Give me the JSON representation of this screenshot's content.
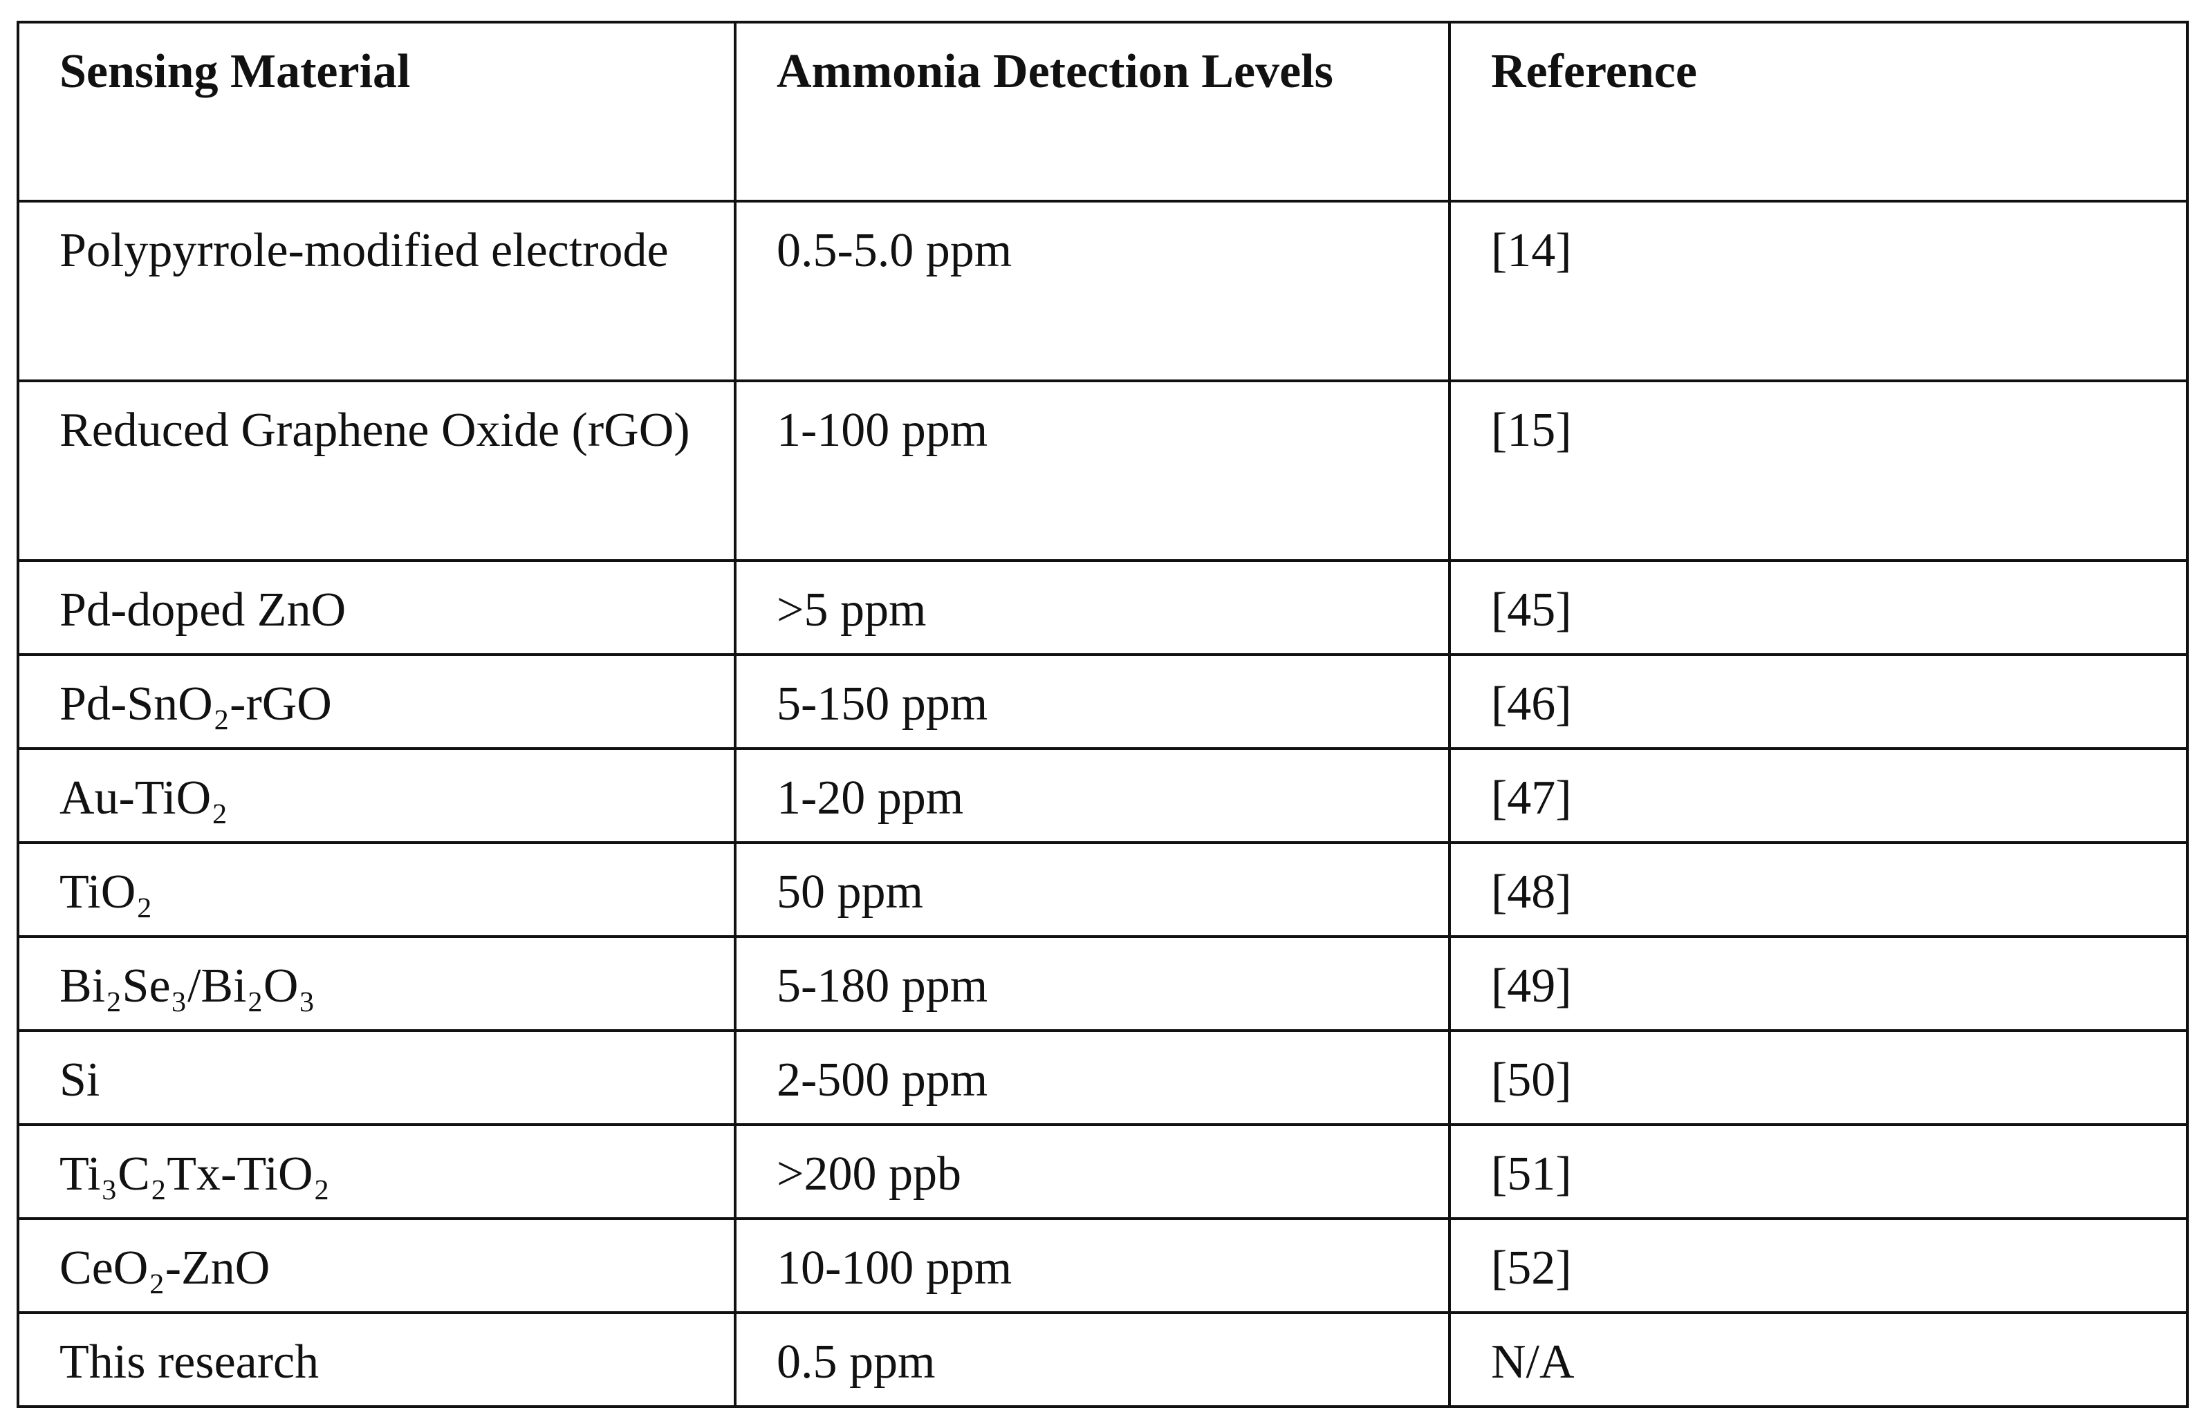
{
  "table": {
    "header": [
      "Sensing Material",
      "Ammonia Detection Levels",
      "Reference"
    ],
    "rows": [
      [
        "Polypyrrole-modified electrode",
        "0.5-5.0 ppm",
        "[14]"
      ],
      [
        "Reduced Graphene Oxide (rGO)",
        "1-100 ppm",
        "[15]"
      ],
      [
        "Pd-doped ZnO",
        ">5 ppm",
        "[45]"
      ],
      [
        "Pd-SnO₂-rGO",
        "5-150 ppm",
        "[46]"
      ],
      [
        "Au-TiO₂",
        "1-20 ppm",
        "[47]"
      ],
      [
        "TiO₂",
        "50 ppm",
        "[48]"
      ],
      [
        "Bi₂Se₃/Bi₂O₃",
        "5-180 ppm",
        "[49]"
      ],
      [
        "Si",
        "2-500 ppm",
        "[50]"
      ],
      [
        "Ti₃C₂Tx-TiO₂",
        ">200 ppb",
        "[51]"
      ],
      [
        "CeO₂-ZnO",
        "10-100 ppm",
        "[52]"
      ],
      [
        "This research",
        "0.5 ppm",
        "N/A"
      ]
    ]
  }
}
